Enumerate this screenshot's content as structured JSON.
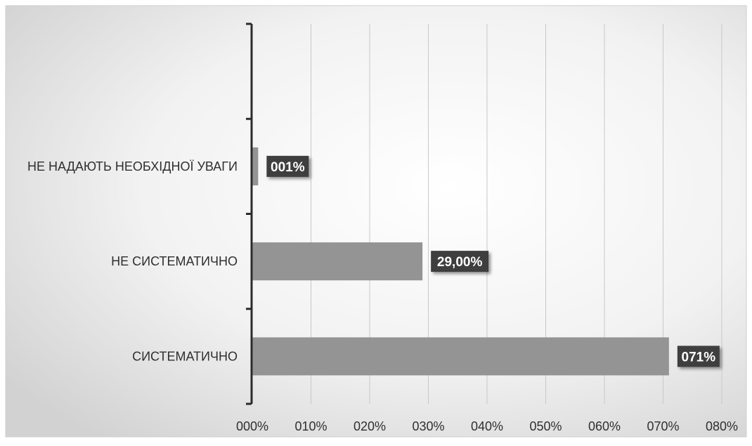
{
  "chart_data": {
    "type": "bar",
    "orientation": "horizontal",
    "categories": [
      "НЕ НАДАЮТЬ НЕОБХІДНОЇ УВАГИ",
      "НЕ СИСТЕМАТИЧНО",
      "СИСТЕМАТИЧНО"
    ],
    "values": [
      0.01,
      0.29,
      0.71
    ],
    "data_labels": [
      "001%",
      "29,00%",
      "071%"
    ],
    "xticks": [
      0,
      0.1,
      0.2,
      0.3,
      0.4,
      0.5,
      0.6,
      0.7,
      0.8
    ],
    "xtick_labels": [
      "000%",
      "010%",
      "020%",
      "030%",
      "040%",
      "050%",
      "060%",
      "070%",
      "080%"
    ],
    "xlim": [
      0,
      0.8
    ],
    "grid": "vertical",
    "legend": "none",
    "colors": {
      "bar": "#949494",
      "label_bg": "#3a3a3a",
      "label_text": "#ffffff",
      "grid": "#c8c8c8",
      "axis": "#2b2b2b",
      "text": "#2f2f2f"
    }
  }
}
